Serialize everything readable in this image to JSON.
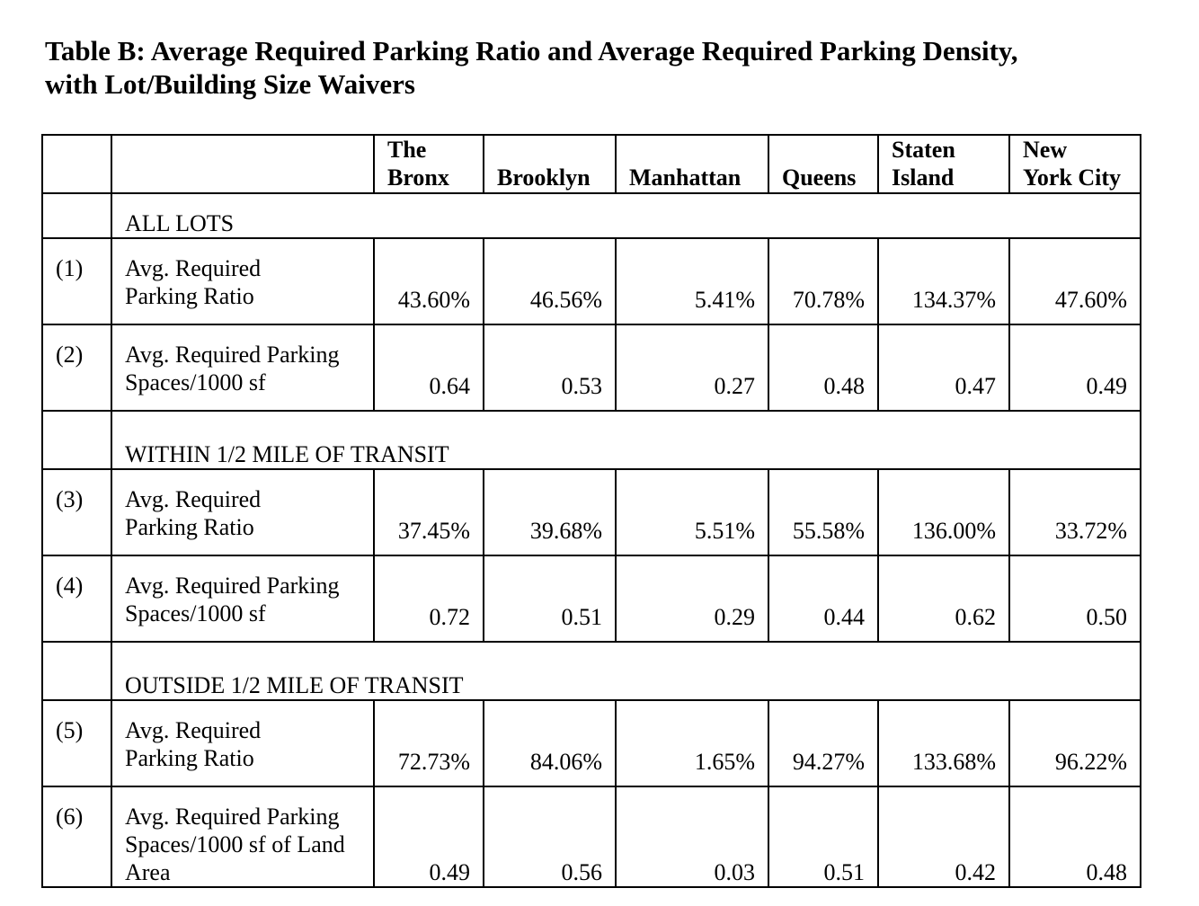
{
  "title": {
    "line1": "Table B: Average Required Parking Ratio and Average Required Parking Density,",
    "line2": "with Lot/Building Size Waivers"
  },
  "columns": [
    {
      "line1": "The",
      "line2": "Bronx"
    },
    {
      "line1": "",
      "line2": "Brooklyn"
    },
    {
      "line1": "",
      "line2": "Manhattan"
    },
    {
      "line1": "",
      "line2": "Queens"
    },
    {
      "line1": "Staten",
      "line2": "Island"
    },
    {
      "line1": "New",
      "line2": "York City"
    }
  ],
  "sections": [
    {
      "heading": "ALL LOTS",
      "rows": [
        {
          "num": "(1)",
          "label1": "Avg. Required",
          "label2": "Parking Ratio",
          "label3": "",
          "values": [
            "43.60%",
            "46.56%",
            "5.41%",
            "70.78%",
            "134.37%",
            "47.60%"
          ]
        },
        {
          "num": "(2)",
          "label1": "Avg. Required Parking",
          "label2": "Spaces/1000 sf",
          "label3": "",
          "values": [
            "0.64",
            "0.53",
            "0.27",
            "0.48",
            "0.47",
            "0.49"
          ]
        }
      ]
    },
    {
      "heading": "WITHIN 1/2 MILE OF TRANSIT",
      "rows": [
        {
          "num": "(3)",
          "label1": "Avg. Required",
          "label2": "Parking Ratio",
          "label3": "",
          "values": [
            "37.45%",
            "39.68%",
            "5.51%",
            "55.58%",
            "136.00%",
            "33.72%"
          ]
        },
        {
          "num": "(4)",
          "label1": "Avg. Required Parking",
          "label2": "Spaces/1000 sf",
          "label3": "",
          "values": [
            "0.72",
            "0.51",
            "0.29",
            "0.44",
            "0.62",
            "0.50"
          ]
        }
      ]
    },
    {
      "heading": "OUTSIDE 1/2 MILE OF TRANSIT",
      "rows": [
        {
          "num": "(5)",
          "label1": "Avg. Required",
          "label2": "Parking Ratio",
          "label3": "",
          "values": [
            "72.73%",
            "84.06%",
            "1.65%",
            "94.27%",
            "133.68%",
            "96.22%"
          ]
        },
        {
          "num": "(6)",
          "label1": "Avg. Required Parking",
          "label2": "Spaces/1000 sf of Land",
          "label3": "Area",
          "values": [
            "0.49",
            "0.56",
            "0.03",
            "0.51",
            "0.42",
            "0.48"
          ]
        }
      ]
    }
  ]
}
